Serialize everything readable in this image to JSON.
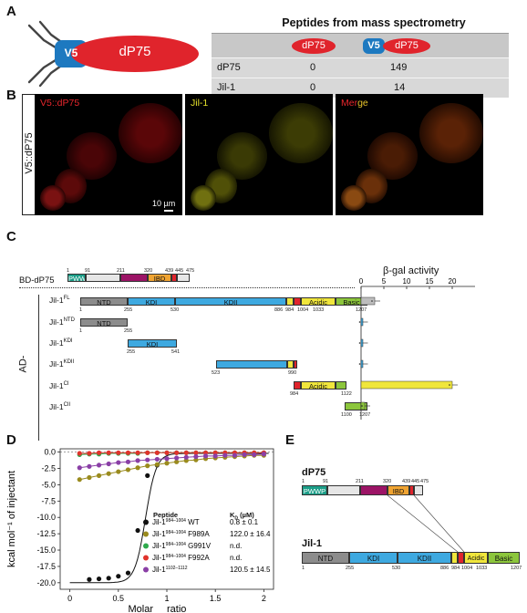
{
  "panels": {
    "a": "A",
    "b": "B",
    "c": "C",
    "d": "D",
    "e": "E"
  },
  "panel_a": {
    "v5": "V5",
    "dp75": "dP75",
    "table_title": "Peptides from mass spectrometry",
    "col1": "dP75",
    "col2_tag": "V5",
    "col2": "dP75",
    "rows": [
      {
        "name": "dP75",
        "c1": "0",
        "c2": "149"
      },
      {
        "name": "Jil-1",
        "c1": "0",
        "c2": "14"
      }
    ]
  },
  "panel_b": {
    "side_label": "V5::dP75",
    "ch1": "V5::dP75",
    "ch2": "Jil-1",
    "ch3_a": "Mer",
    "ch3_b": "ge",
    "scale": "10 µm"
  },
  "panel_c": {
    "bd_label": "BD-dP75",
    "bait_domains": {
      "pwwp": "PWWP",
      "ibd": "IBD"
    },
    "bait_nums": [
      "1",
      "91",
      "211",
      "320",
      "439",
      "445",
      "475"
    ],
    "ad_label": "AD-",
    "bgal_title": "β-gal activity",
    "bgal_ticks": [
      "0",
      "5",
      "10",
      "15",
      "20"
    ],
    "bgal_values": [
      3,
      0.3,
      0.3,
      0.3,
      20,
      0.8
    ],
    "rows": [
      {
        "name": "Jil-1",
        "sup": "FL"
      },
      {
        "name": "Jil-1",
        "sup": "NTD"
      },
      {
        "name": "Jil-1",
        "sup": "KDI"
      },
      {
        "name": "Jil-1",
        "sup": "KDII"
      },
      {
        "name": "Jil-1",
        "sup": "CI"
      },
      {
        "name": "Jil-1",
        "sup": "CII"
      }
    ],
    "domains": {
      "ntd": "NTD",
      "kdi": "KDI",
      "kdii": "KDII",
      "acidic": "Acidic",
      "basic": "Basic"
    },
    "fl_nums": [
      "1",
      "255",
      "530",
      "886",
      "984",
      "1004",
      "1033",
      "1207"
    ],
    "ntd_nums": [
      "1",
      "255"
    ],
    "kdi_nums": [
      "255",
      "541"
    ],
    "kdii_nums": [
      "523",
      "990"
    ],
    "ci_nums": [
      "984",
      "1122"
    ],
    "cii_nums": [
      "1100",
      "1207"
    ]
  },
  "panel_d": {
    "ylabel": "kcal mol⁻¹ of injectant",
    "xlabel_a": "Molar",
    "xlabel_b": "ratio",
    "yticks": [
      "0.0",
      "-2.5",
      "-5.0",
      "-7.5",
      "-10.0",
      "-12.5",
      "-15.0",
      "-17.5",
      "-20.0"
    ],
    "xticks": [
      "0",
      "0.5",
      "1",
      "1.5",
      "2"
    ],
    "legend_head_peptide": "Peptide",
    "legend_head_kd": "K",
    "legend_head_kd_sub": "D",
    "legend_head_kd_unit": " (µM)",
    "legend": [
      {
        "base": "Jil-1",
        "sup": "984–1004",
        "suffix": " WT",
        "kd": "0.8 ± 0.1",
        "color": "#111111"
      },
      {
        "base": "Jil-1",
        "sup": "984–1004",
        "suffix": " F989A",
        "kd": "122.0 ± 16.4",
        "color": "#9a8b1e"
      },
      {
        "base": "Jil-1",
        "sup": "984–1004",
        "suffix": " G991V",
        "kd": "n.d.",
        "color": "#2eaa4c"
      },
      {
        "base": "Jil-1",
        "sup": "984–1004",
        "suffix": " F992A",
        "kd": "n.d.",
        "color": "#e0332c"
      },
      {
        "base": "Jil-1",
        "sup": "1102–1112",
        "suffix": "",
        "kd": "120.5 ± 14.5",
        "color": "#8a3fa6"
      }
    ]
  },
  "chart_data": {
    "type": "scatter",
    "xlabel": "Molar ratio",
    "ylabel": "kcal mol⁻¹ of injectant",
    "xlim": [
      -0.1,
      2.1
    ],
    "ylim": [
      -21,
      0.5
    ],
    "series": [
      {
        "name": "Jil-1984–1004 WT",
        "color": "#111111",
        "x": [
          0.2,
          0.3,
          0.4,
          0.5,
          0.6,
          0.7,
          0.8,
          0.9
        ],
        "y": [
          -19.5,
          -19.4,
          -19.3,
          -19.0,
          -18.5,
          -12.0,
          -3.6,
          -2.0
        ]
      },
      {
        "name": "Jil-1984–1004 F989A",
        "color": "#9a8b1e",
        "x": [
          0.1,
          0.2,
          0.3,
          0.4,
          0.5,
          0.6,
          0.7,
          0.8,
          0.9,
          1.0,
          1.1,
          1.2,
          1.3,
          1.4,
          1.5,
          1.6,
          1.7,
          1.8,
          1.9,
          2.0
        ],
        "y": [
          -4.2,
          -3.9,
          -3.6,
          -3.3,
          -3.0,
          -2.7,
          -2.4,
          -2.1,
          -1.9,
          -1.7,
          -1.5,
          -1.3,
          -1.2,
          -1.0,
          -0.9,
          -0.8,
          -0.7,
          -0.6,
          -0.5,
          -0.5
        ]
      },
      {
        "name": "Jil-1984–1004 G991V",
        "color": "#2eaa4c",
        "x": [
          0.1,
          0.2,
          0.3,
          0.4,
          0.5,
          0.6,
          0.7,
          0.8,
          0.9,
          1.0,
          1.1,
          1.2,
          1.3,
          1.4,
          1.5,
          1.6,
          1.7,
          1.8,
          1.9,
          2.0
        ],
        "y": [
          -0.4,
          -0.3,
          -0.3,
          -0.2,
          -0.2,
          -0.2,
          -0.2,
          -0.1,
          -0.1,
          -0.1,
          -0.1,
          -0.1,
          -0.1,
          -0.1,
          -0.1,
          -0.1,
          -0.1,
          -0.1,
          -0.1,
          -0.1
        ]
      },
      {
        "name": "Jil-1984–1004 F992A",
        "color": "#e0332c",
        "x": [
          0.1,
          0.2,
          0.3,
          0.4,
          0.5,
          0.6,
          0.7,
          0.8,
          0.9,
          1.0,
          1.1,
          1.2,
          1.3,
          1.4,
          1.5,
          1.6,
          1.7,
          1.8,
          1.9,
          2.0
        ],
        "y": [
          -0.2,
          -0.2,
          -0.1,
          -0.1,
          -0.1,
          -0.1,
          -0.1,
          -0.1,
          -0.1,
          -0.1,
          -0.1,
          -0.1,
          -0.1,
          -0.1,
          -0.1,
          -0.1,
          -0.1,
          -0.1,
          -0.1,
          -0.1
        ]
      },
      {
        "name": "Jil-11102–1112",
        "color": "#8a3fa6",
        "x": [
          0.1,
          0.2,
          0.3,
          0.4,
          0.5,
          0.6,
          0.7,
          0.8,
          0.9,
          1.0,
          1.1,
          1.2,
          1.3,
          1.4,
          1.5,
          1.6,
          1.7,
          1.8,
          1.9,
          2.0
        ],
        "y": [
          -2.4,
          -2.2,
          -2.0,
          -1.8,
          -1.6,
          -1.5,
          -1.3,
          -1.2,
          -1.1,
          -1.0,
          -0.9,
          -0.8,
          -0.7,
          -0.6,
          -0.6,
          -0.5,
          -0.5,
          -0.4,
          -0.4,
          -0.3
        ]
      }
    ]
  },
  "panel_e": {
    "dp75": "dP75",
    "dp75_domains": {
      "pwwp": "PWWP",
      "ibd": "IBD"
    },
    "dp75_nums": [
      "1",
      "91",
      "211",
      "320",
      "439",
      "445",
      "475"
    ],
    "jil1": "Jil-1",
    "jil1_domains": {
      "ntd": "NTD",
      "kdi": "KDI",
      "kdii": "KDII",
      "acidic": "Acidic",
      "basic": "Basic"
    },
    "jil1_nums": [
      "1",
      "255",
      "530",
      "886",
      "984",
      "1004",
      "1033",
      "1207"
    ]
  }
}
